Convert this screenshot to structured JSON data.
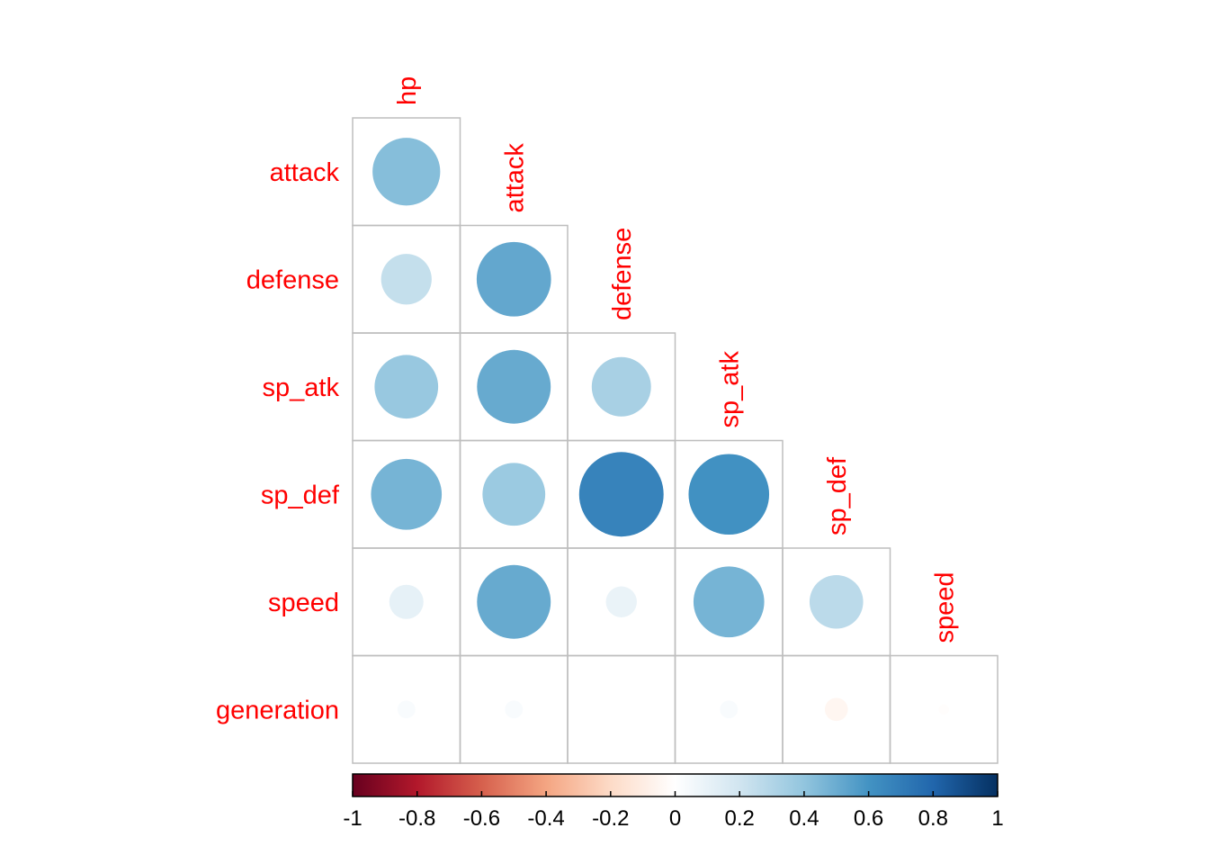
{
  "chart_data": {
    "type": "heatmap",
    "style": "corrplot-circle-lower-triangle",
    "title": "",
    "variables": [
      "hp",
      "attack",
      "defense",
      "sp_atk",
      "sp_def",
      "speed",
      "generation"
    ],
    "column_labels": [
      "hp",
      "attack",
      "defense",
      "sp_atk",
      "sp_def",
      "speed"
    ],
    "row_labels": [
      "attack",
      "defense",
      "sp_atk",
      "sp_def",
      "speed",
      "generation"
    ],
    "label_color": "#ff0000",
    "correlations": [
      {
        "row": "attack",
        "col": "hp",
        "value": 0.43
      },
      {
        "row": "defense",
        "col": "hp",
        "value": 0.24
      },
      {
        "row": "defense",
        "col": "attack",
        "value": 0.52
      },
      {
        "row": "sp_atk",
        "col": "hp",
        "value": 0.38
      },
      {
        "row": "sp_atk",
        "col": "attack",
        "value": 0.51
      },
      {
        "row": "sp_atk",
        "col": "defense",
        "value": 0.33
      },
      {
        "row": "sp_def",
        "col": "hp",
        "value": 0.47
      },
      {
        "row": "sp_def",
        "col": "attack",
        "value": 0.37
      },
      {
        "row": "sp_def",
        "col": "defense",
        "value": 0.67
      },
      {
        "row": "sp_def",
        "col": "sp_atk",
        "value": 0.61
      },
      {
        "row": "speed",
        "col": "hp",
        "value": 0.11
      },
      {
        "row": "speed",
        "col": "attack",
        "value": 0.51
      },
      {
        "row": "speed",
        "col": "defense",
        "value": 0.09
      },
      {
        "row": "speed",
        "col": "sp_atk",
        "value": 0.47
      },
      {
        "row": "speed",
        "col": "sp_def",
        "value": 0.27
      },
      {
        "row": "generation",
        "col": "hp",
        "value": 0.03
      },
      {
        "row": "generation",
        "col": "attack",
        "value": 0.03
      },
      {
        "row": "generation",
        "col": "defense",
        "value": 0.0
      },
      {
        "row": "generation",
        "col": "sp_atk",
        "value": 0.03
      },
      {
        "row": "generation",
        "col": "sp_def",
        "value": -0.05
      },
      {
        "row": "generation",
        "col": "speed",
        "value": -0.01
      }
    ],
    "colorbar": {
      "range": [
        -1,
        1
      ],
      "ticks": [
        "-1",
        "-0.8",
        "-0.6",
        "-0.4",
        "-0.2",
        "0",
        "0.2",
        "0.4",
        "0.6",
        "0.8",
        "1"
      ],
      "colors": [
        "#67001F",
        "#B2182B",
        "#D6604D",
        "#F4A582",
        "#FDDBC7",
        "#FFFFFF",
        "#D1E5F0",
        "#92C5DE",
        "#4393C3",
        "#2166AC",
        "#053061"
      ]
    }
  }
}
